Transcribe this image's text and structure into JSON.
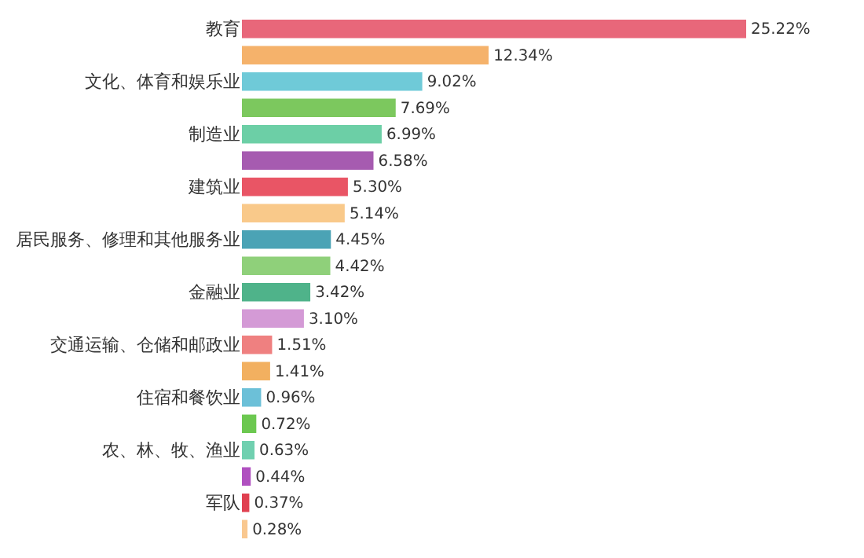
{
  "chart_data": {
    "type": "bar",
    "orientation": "horizontal",
    "tick_labels": "y",
    "data_labels": true,
    "categories": [
      "教育",
      null,
      "文化、体育和娱乐业",
      null,
      "制造业",
      null,
      "建筑业",
      null,
      "居民服务、修理和其他服务业",
      null,
      "金融业",
      null,
      "交通运输、仓储和邮政业",
      null,
      "住宿和餐饮业",
      null,
      "农、林、牧、渔业",
      null,
      "军队",
      null
    ],
    "values": [
      25.22,
      12.34,
      9.02,
      7.69,
      6.99,
      6.58,
      5.3,
      5.14,
      4.45,
      4.42,
      3.42,
      3.1,
      1.51,
      1.41,
      0.96,
      0.72,
      0.63,
      0.44,
      0.37,
      0.28
    ],
    "value_labels": [
      "25.22%",
      "12.34%",
      "9.02%",
      "7.69%",
      "6.99%",
      "6.58%",
      "5.30%",
      "5.14%",
      "4.45%",
      "4.42%",
      "3.42%",
      "3.10%",
      "1.51%",
      "1.41%",
      "0.96%",
      "0.72%",
      "0.63%",
      "0.44%",
      "0.37%",
      "0.28%"
    ],
    "colors": [
      "#e8677a",
      "#f5b26b",
      "#6fcad8",
      "#7cc85e",
      "#6ccfa6",
      "#a65bb0",
      "#e95565",
      "#f9c98a",
      "#4ba3b5",
      "#8fd07a",
      "#4fb38a",
      "#d49ad6",
      "#ef8080",
      "#f2b060",
      "#6cc0d8",
      "#6cc850",
      "#70d0b0",
      "#b050c0",
      "#e04050",
      "#f9c890"
    ]
  }
}
